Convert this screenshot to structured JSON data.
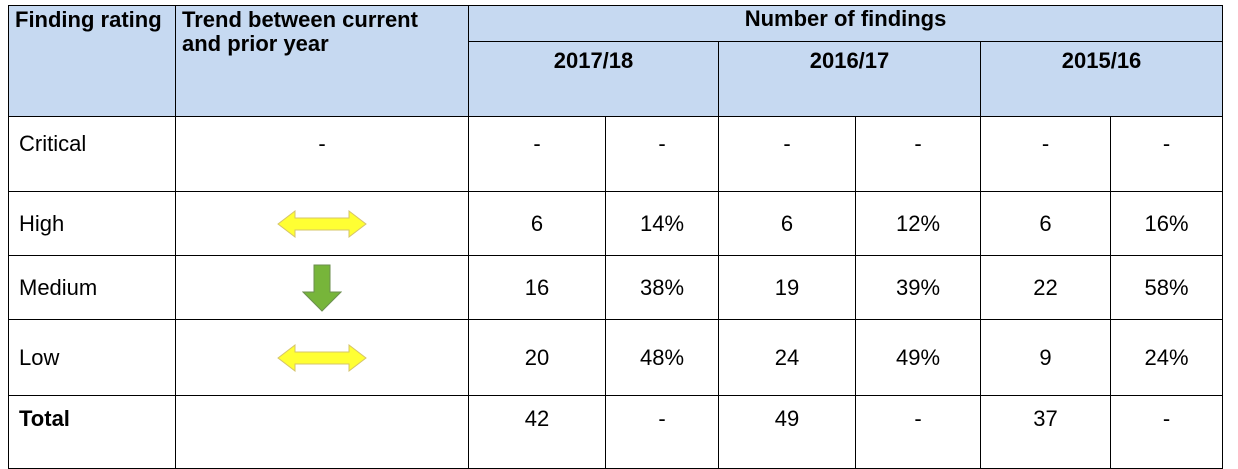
{
  "header": {
    "rating": "Finding rating",
    "trend": "Trend between current and prior year",
    "group": "Number of findings",
    "years": [
      "2017/18",
      "2016/17",
      "2015/16"
    ]
  },
  "rows": [
    {
      "rating": "Critical",
      "trend": "-",
      "cells": [
        "-",
        "-",
        "-",
        "-",
        "-",
        "-"
      ]
    },
    {
      "rating": "High",
      "cells": [
        6,
        "14%",
        6,
        "12%",
        6,
        "16%"
      ]
    },
    {
      "rating": "Medium",
      "cells": [
        16,
        "38%",
        19,
        "39%",
        22,
        "58%"
      ]
    },
    {
      "rating": "Low",
      "cells": [
        20,
        "48%",
        24,
        "49%",
        9,
        "24%"
      ]
    },
    {
      "rating": "Total",
      "cells": [
        42,
        "-",
        49,
        "-",
        37,
        "-"
      ]
    }
  ]
}
